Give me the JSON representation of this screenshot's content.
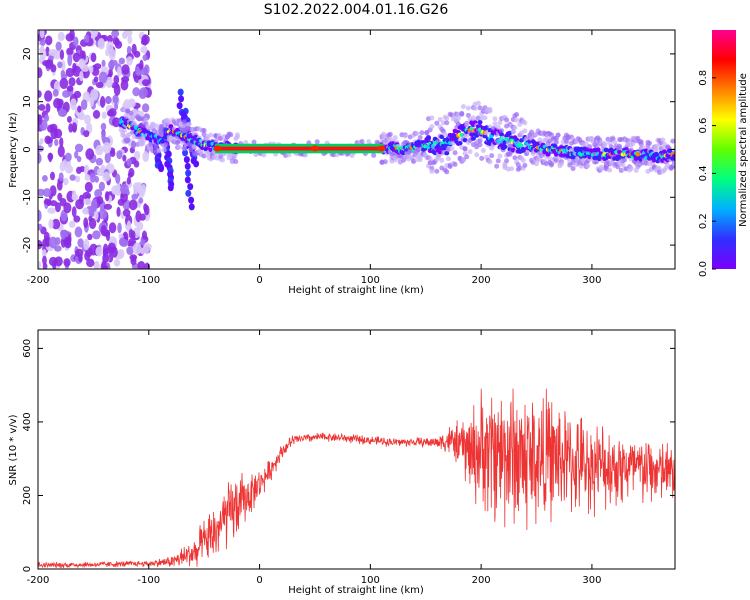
{
  "title": "S102.2022.004.01.16.G26",
  "chart_data": [
    {
      "type": "heatmap",
      "xlabel": "Height of straight line (km)",
      "ylabel": "Frequency (Hz)",
      "xlim": [
        -200,
        375
      ],
      "ylim": [
        -25,
        25
      ],
      "xticks": [
        -200,
        -100,
        0,
        100,
        200,
        300
      ],
      "yticks": [
        -20,
        -10,
        0,
        10,
        20
      ],
      "colorbar": {
        "label": "Normalized spectral amplitude",
        "range": [
          0,
          1
        ],
        "ticks": [
          "0.0",
          "0.2",
          "0.4",
          "0.6",
          "0.8"
        ],
        "colormap": [
          "#7a00ff",
          "#3030ff",
          "#00b0ff",
          "#00ff80",
          "#60ff00",
          "#ffff00",
          "#ff8000",
          "#ff0000",
          "#ff0090"
        ]
      },
      "ridge": {
        "x": [
          -125,
          -110,
          -100,
          -90,
          -80,
          -70,
          -60,
          -50,
          -40,
          -30,
          -20,
          0,
          50,
          110,
          120,
          130,
          140,
          150,
          160,
          170,
          180,
          190,
          200,
          210,
          220,
          230,
          240,
          260,
          280,
          300,
          320,
          340,
          360,
          375
        ],
        "y": [
          6,
          4,
          3,
          2,
          4,
          3,
          2,
          1,
          0.5,
          0.5,
          0.2,
          0.2,
          0.2,
          0.2,
          0.5,
          0,
          0.5,
          1,
          1,
          1,
          3,
          4,
          4,
          2.5,
          2,
          1.5,
          1,
          0,
          -0.5,
          -1,
          -1,
          -1,
          -1.5,
          -1
        ]
      },
      "noise_region_x": [
        -200,
        -110
      ]
    },
    {
      "type": "line",
      "xlabel": "Height of straight line (km)",
      "ylabel": "SNR (10 * v/v)",
      "xlim": [
        -200,
        375
      ],
      "ylim": [
        0,
        650
      ],
      "xticks": [
        -200,
        -100,
        0,
        100,
        200,
        300
      ],
      "yticks": [
        0,
        200,
        400,
        600
      ],
      "color": "#ee3333",
      "series": [
        {
          "x": [
            -200,
            -150,
            -100,
            -80,
            -70,
            -60,
            -50,
            -40,
            -30,
            -20,
            -10,
            0,
            10,
            20,
            30,
            40,
            60,
            80,
            100,
            120,
            140,
            160,
            170,
            180,
            190,
            200,
            210,
            220,
            230,
            240,
            250,
            260,
            270,
            280,
            300,
            320,
            340,
            360,
            375
          ],
          "y": [
            10,
            12,
            15,
            20,
            30,
            45,
            70,
            100,
            140,
            170,
            200,
            230,
            270,
            320,
            350,
            355,
            360,
            355,
            350,
            345,
            345,
            345,
            350,
            340,
            320,
            320,
            320,
            320,
            310,
            300,
            300,
            310,
            300,
            290,
            280,
            280,
            270,
            265,
            260
          ],
          "spread": [
            8,
            8,
            8,
            15,
            30,
            40,
            60,
            80,
            90,
            90,
            60,
            40,
            30,
            20,
            15,
            12,
            12,
            12,
            12,
            12,
            12,
            15,
            40,
            60,
            120,
            160,
            190,
            200,
            200,
            210,
            190,
            170,
            160,
            140,
            120,
            110,
            100,
            90,
            80
          ]
        }
      ]
    }
  ]
}
